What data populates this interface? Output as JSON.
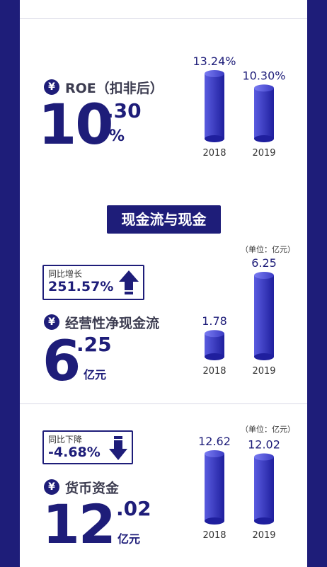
{
  "sections": {
    "roe": {
      "label": "ROE（扣非后）",
      "value_int": "10",
      "value_dec": ".30",
      "unit": "%"
    },
    "cashflow_title": "现金流与现金",
    "op_cash": {
      "change_label": "同比增长",
      "change_value": "251.57%",
      "change_direction": "up",
      "label": "经营性净现金流",
      "value_int": "6",
      "value_dec": ".25",
      "unit": "亿元",
      "unit_note": "（单位：亿元）"
    },
    "cash": {
      "change_label": "同比下降",
      "change_value": "-4.68%",
      "change_direction": "down",
      "label": "货币资金",
      "value_int": "12",
      "value_dec": ".02",
      "unit": "亿元",
      "unit_note": "（单位：亿元）"
    }
  },
  "icons": {
    "currency": "yen-icon"
  },
  "colors": {
    "brand": "#1e1d79",
    "bar_light": "#5a5ce0",
    "bar_dark": "#1f1f9e"
  },
  "chart_data": [
    {
      "type": "bar",
      "categories": [
        "2018",
        "2019"
      ],
      "values": [
        13.24,
        10.3
      ],
      "labels": [
        "13.24%",
        "10.30%"
      ],
      "ylim": [
        0,
        13.24
      ]
    },
    {
      "type": "bar",
      "categories": [
        "2018",
        "2019"
      ],
      "values": [
        1.78,
        6.25
      ],
      "labels": [
        "1.78",
        "6.25"
      ],
      "ylim": [
        0,
        6.25
      ]
    },
    {
      "type": "bar",
      "categories": [
        "2018",
        "2019"
      ],
      "values": [
        12.62,
        12.02
      ],
      "labels": [
        "12.62",
        "12.02"
      ],
      "ylim": [
        0,
        12.62
      ]
    }
  ]
}
